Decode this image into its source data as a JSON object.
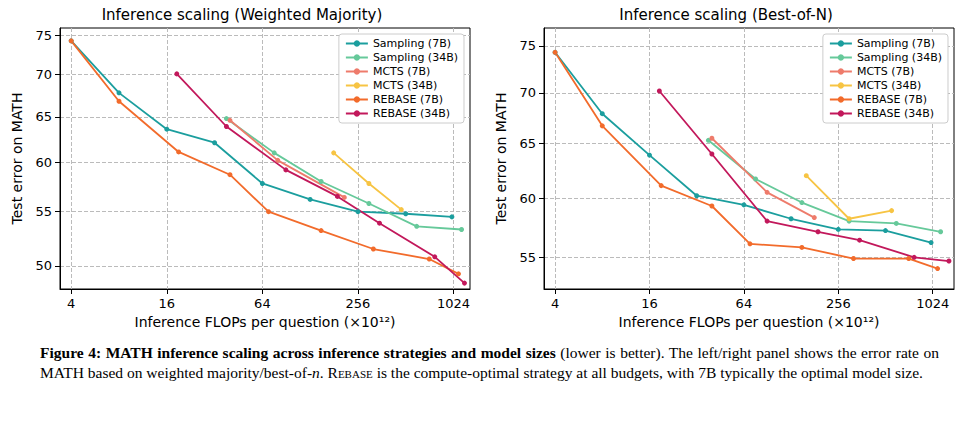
{
  "chart_data": [
    {
      "type": "line",
      "title": "Inference scaling (Weighted Majority)",
      "x_label": "Inference FLOPs per question (×10¹²)",
      "y_label": "Test error on MATH",
      "log": true,
      "grid": true,
      "legend": "upper right",
      "xlim": [
        3.4,
        1300
      ],
      "xticks": [
        4,
        16,
        64,
        256,
        1024
      ],
      "ylim": [
        48,
        76
      ],
      "yticks": [
        50,
        55,
        60,
        65,
        70,
        75
      ],
      "series": [
        {
          "name": "Sampling (7B)",
          "color": "#1b9e9e",
          "marker": "o",
          "line_style": "solid",
          "x": [
            4,
            8,
            16,
            32,
            64,
            128,
            256,
            512,
            1000
          ],
          "values": [
            74.3,
            67.8,
            63.6,
            62.1,
            57.8,
            56.2,
            55.0,
            54.8,
            54.5
          ]
        },
        {
          "name": "Sampling (34B)",
          "color": "#66c99a",
          "marker": "o",
          "line_style": "solid",
          "x": [
            38,
            76,
            150,
            300,
            600,
            1150
          ],
          "values": [
            64.8,
            61.0,
            58.0,
            55.8,
            53.6,
            53.3
          ]
        },
        {
          "name": "MCTS (7B)",
          "color": "#ee7b6b",
          "marker": "o",
          "line_style": "solid",
          "x": [
            40,
            80,
            210
          ],
          "values": [
            64.6,
            60.2,
            56.4
          ]
        },
        {
          "name": "MCTS (34B)",
          "color": "#f7c443",
          "marker": "o",
          "line_style": "solid",
          "x": [
            180,
            300,
            480
          ],
          "values": [
            61.0,
            57.8,
            55.2
          ]
        },
        {
          "name": "REBASE (7B)",
          "color": "#f26b2b",
          "marker": "o",
          "line_style": "solid",
          "x": [
            4,
            8,
            19,
            40,
            70,
            150,
            320,
            720,
            1100
          ],
          "values": [
            74.3,
            66.8,
            61.1,
            58.7,
            55.0,
            53.2,
            51.5,
            50.6,
            49.3
          ]
        },
        {
          "name": "REBASE (34B)",
          "color": "#c2185b",
          "marker": "o",
          "line_style": "solid",
          "x": [
            18.5,
            38,
            90,
            190,
            350,
            780,
            1200
          ],
          "values": [
            70.1,
            63.9,
            59.2,
            56.5,
            53.9,
            50.8,
            48.5
          ]
        }
      ]
    },
    {
      "type": "line",
      "title": "Inference scaling (Best-of-N)",
      "x_label": "Inference FLOPs per question (×10¹²)",
      "y_label": "Test error on MATH",
      "log": true,
      "grid": true,
      "legend": "upper right",
      "xlim": [
        3.4,
        1400
      ],
      "xticks": [
        4,
        16,
        64,
        256,
        1024
      ],
      "ylim": [
        52.5,
        77
      ],
      "yticks": [
        55,
        60,
        65,
        70,
        75
      ],
      "series": [
        {
          "name": "Sampling (7B)",
          "color": "#1b9e9e",
          "marker": "o",
          "line_style": "solid",
          "x": [
            4,
            8,
            16,
            32,
            64,
            128,
            256,
            512,
            1000
          ],
          "values": [
            74.3,
            67.9,
            63.9,
            60.2,
            59.4,
            58.2,
            57.3,
            57.2,
            56.2
          ]
        },
        {
          "name": "Sampling (34B)",
          "color": "#66c99a",
          "marker": "o",
          "line_style": "solid",
          "x": [
            38,
            76,
            150,
            300,
            600,
            1150
          ],
          "values": [
            65.3,
            61.7,
            59.6,
            58.0,
            57.8,
            57.1
          ]
        },
        {
          "name": "MCTS (7B)",
          "color": "#ee7b6b",
          "marker": "o",
          "line_style": "solid",
          "x": [
            40,
            90,
            180
          ],
          "values": [
            65.5,
            60.5,
            58.3
          ]
        },
        {
          "name": "MCTS (34B)",
          "color": "#f7c443",
          "marker": "o",
          "line_style": "solid",
          "x": [
            160,
            300,
            560
          ],
          "values": [
            62.0,
            58.2,
            58.9
          ]
        },
        {
          "name": "REBASE (7B)",
          "color": "#f26b2b",
          "marker": "o",
          "line_style": "solid",
          "x": [
            4,
            8,
            19,
            40,
            70,
            150,
            320,
            720,
            1100
          ],
          "values": [
            74.3,
            66.7,
            61.1,
            59.3,
            56.1,
            55.8,
            54.9,
            54.9,
            54.1
          ]
        },
        {
          "name": "REBASE (34B)",
          "color": "#c2185b",
          "marker": "o",
          "line_style": "solid",
          "x": [
            18.5,
            40,
            90,
            190,
            350,
            780,
            1300
          ],
          "values": [
            70.2,
            64.0,
            58.0,
            57.1,
            56.4,
            55.0,
            54.7
          ]
        }
      ]
    }
  ],
  "caption": {
    "label": "Figure 4:",
    "title": "MATH inference scaling across inference strategies and model sizes",
    "text_1": "(lower is better). The left/right panel shows the error rate on MATH based on weighted majority/best-of-",
    "text_n": "n",
    "text_2": ". ",
    "text_rebase": "Rebase",
    "text_3": " is the compute-optimal strategy at all budgets, with 7B typically the optimal model size."
  }
}
